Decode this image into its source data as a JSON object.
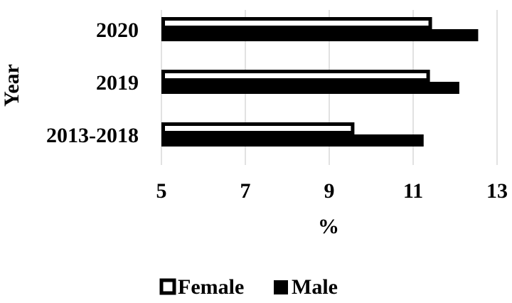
{
  "chart_data": {
    "type": "bar",
    "orientation": "horizontal",
    "categories": [
      "2020",
      "2019",
      "2013-2018"
    ],
    "series": [
      {
        "name": "Female",
        "values": [
          11.45,
          11.4,
          9.6
        ],
        "color": "#ffffff"
      },
      {
        "name": "Male",
        "values": [
          12.55,
          12.1,
          11.25
        ],
        "color": "#000000"
      }
    ],
    "xlabel": "%",
    "ylabel": "Year",
    "xlim": [
      5,
      13
    ],
    "xticks": [
      "5",
      "7",
      "9",
      "11",
      "13"
    ],
    "grid": "vertical",
    "legend_position": "bottom"
  }
}
